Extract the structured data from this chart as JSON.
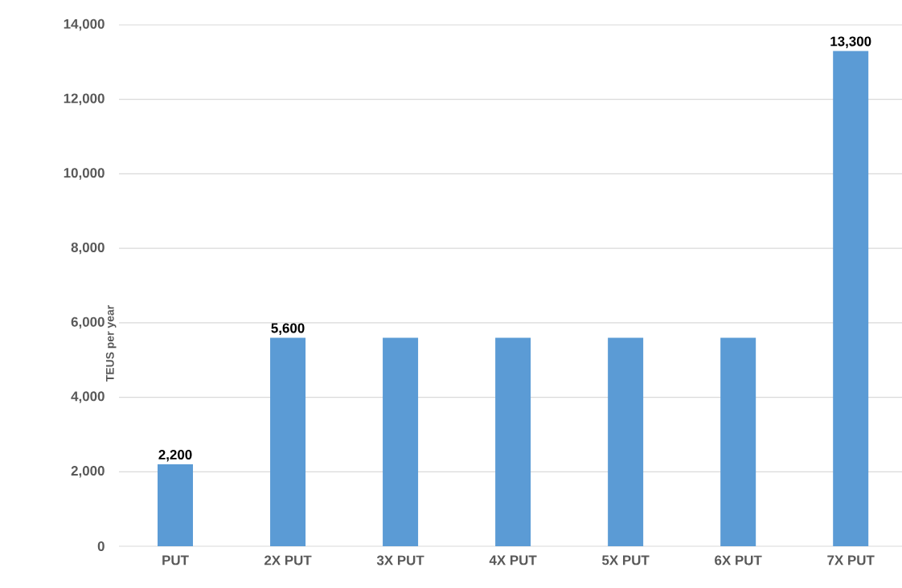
{
  "chart_data": {
    "type": "bar",
    "ylabel": "TEUS per year",
    "categories": [
      "PUT",
      "2X PUT",
      "3X PUT",
      "4X PUT",
      "5X PUT",
      "6X PUT",
      "7X PUT"
    ],
    "values": [
      2200,
      5600,
      5600,
      5600,
      5600,
      5600,
      13300
    ],
    "value_labels": [
      "2,200",
      "5,600",
      null,
      null,
      null,
      null,
      "13,300"
    ],
    "color": "#5b9bd5",
    "ylim": [
      0,
      14000
    ],
    "yticks": [
      {
        "value": 0,
        "label": "0"
      },
      {
        "value": 2000,
        "label": "2,000"
      },
      {
        "value": 4000,
        "label": "4,000"
      },
      {
        "value": 6000,
        "label": "6,000"
      },
      {
        "value": 8000,
        "label": "8,000"
      },
      {
        "value": 10000,
        "label": "10,000"
      },
      {
        "value": 12000,
        "label": "12,000"
      },
      {
        "value": 14000,
        "label": "14,000"
      }
    ],
    "grid": "y"
  }
}
